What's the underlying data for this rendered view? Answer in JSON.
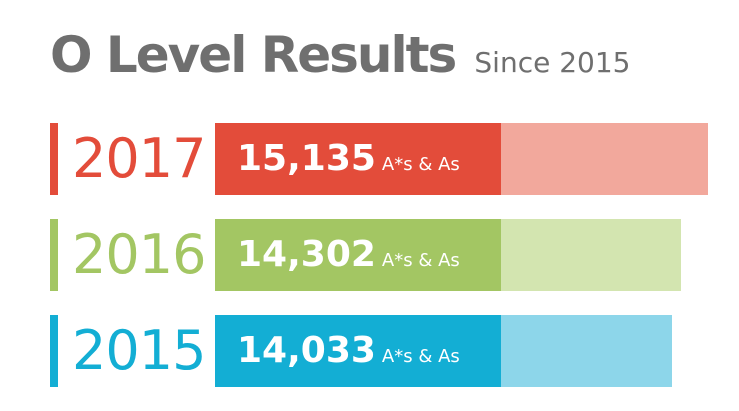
{
  "chart_data": {
    "type": "bar",
    "orientation": "horizontal",
    "title": "O Level Results",
    "subtitle": "Since 2015",
    "unit_label": "A*s & As",
    "xlim": [
      0,
      15135
    ],
    "categories": [
      "2017",
      "2016",
      "2015"
    ],
    "values": [
      15135,
      14302,
      14033
    ],
    "value_labels": [
      "15,135",
      "14,302",
      "14,033"
    ],
    "colors": {
      "2017": {
        "dark": "#e34c3a",
        "light": "#f2a89c"
      },
      "2016": {
        "dark": "#a3c663",
        "light": "#d3e5b0"
      },
      "2015": {
        "dark": "#13aed4",
        "light": "#8dd6ea"
      }
    },
    "grid": false,
    "legend": "none"
  }
}
